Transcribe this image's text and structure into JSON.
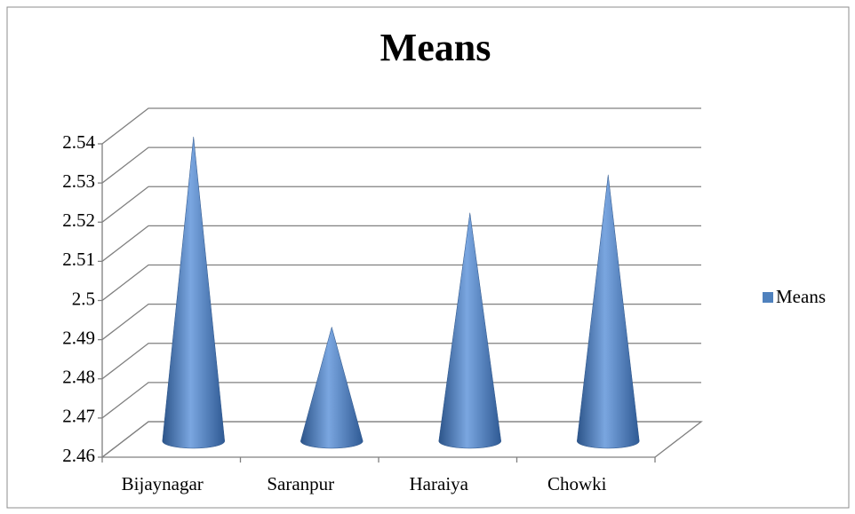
{
  "chart_data": {
    "type": "cone",
    "title": "Means",
    "categories": [
      "Bijaynagar",
      "Saranpur",
      "Haraiya",
      "Chowki"
    ],
    "series": [
      {
        "name": "Means",
        "color": "#4f81bd",
        "values": [
          2.54,
          2.49,
          2.52,
          2.53
        ]
      }
    ],
    "ylim": [
      2.46,
      2.54
    ],
    "yticks": [
      2.46,
      2.47,
      2.48,
      2.49,
      2.5,
      2.51,
      2.52,
      2.53,
      2.54
    ],
    "grid": true,
    "legend": "right"
  }
}
